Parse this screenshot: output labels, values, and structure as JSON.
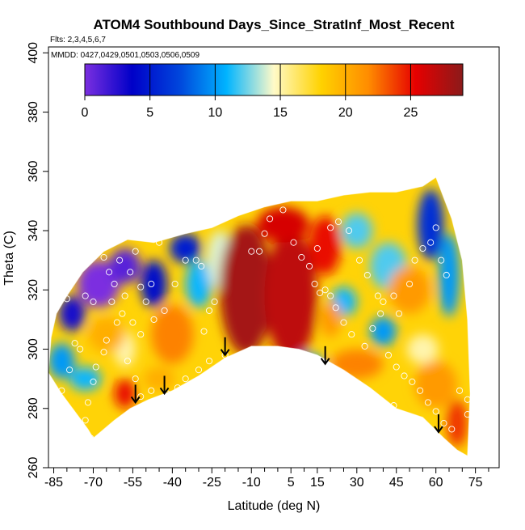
{
  "chart_data": {
    "type": "heatmap",
    "title": "ATOM4 Southbound Days_Since_StratInf_Most_Recent",
    "subtitle_flights": "Flts: 2,3,4,5,6,7",
    "subtitle_dates": "MMDD: 0427,0429,0501,0503,0506,0509",
    "xlabel": "Latitude (deg N)",
    "ylabel": "Theta (C)",
    "xlim": [
      -87,
      84
    ],
    "ylim": [
      260,
      402
    ],
    "x_major_ticks": [
      -85,
      -70,
      -55,
      -40,
      -25,
      -10,
      5,
      15,
      30,
      45,
      60,
      75
    ],
    "x_minor_ticks": [
      -80,
      -75,
      -65,
      -60,
      -50,
      -45,
      -35,
      -30,
      -20,
      -15,
      -5,
      0,
      10,
      20,
      25,
      35,
      40,
      50,
      55,
      65,
      70,
      80
    ],
    "y_ticks": [
      260,
      280,
      300,
      320,
      340,
      360,
      380,
      400
    ],
    "colorbar": {
      "min": 0,
      "max": 29,
      "ticks": [
        0,
        5,
        10,
        15,
        20,
        25
      ],
      "colors": [
        "#7b2fe0",
        "#0000c8",
        "#0046dc",
        "#00b4ff",
        "#fffac8",
        "#ffd200",
        "#ff8c00",
        "#e60000",
        "#8b1a1a"
      ]
    },
    "arrows": [
      {
        "lat": -54,
        "theta": 282
      },
      {
        "lat": -43,
        "theta": 285
      },
      {
        "lat": -20,
        "theta": 298
      },
      {
        "lat": 18,
        "theta": 295
      },
      {
        "lat": 61,
        "theta": 272
      }
    ],
    "field_region": {
      "bottom": [
        [
          -87,
          292
        ],
        [
          -82,
          285
        ],
        [
          -77,
          279
        ],
        [
          -72,
          273
        ],
        [
          -70,
          270
        ],
        [
          -62,
          276
        ],
        [
          -56,
          280
        ],
        [
          -49,
          283
        ],
        [
          -40,
          286
        ],
        [
          -30,
          291
        ],
        [
          -20,
          297
        ],
        [
          -10,
          301
        ],
        [
          0,
          301
        ],
        [
          8,
          300
        ],
        [
          15,
          298
        ],
        [
          25,
          293
        ],
        [
          35,
          287
        ],
        [
          45,
          280
        ],
        [
          55,
          277
        ],
        [
          63,
          270
        ],
        [
          68,
          266
        ],
        [
          72,
          264
        ]
      ],
      "top": [
        [
          -87,
          292
        ],
        [
          -86,
          304
        ],
        [
          -84,
          312
        ],
        [
          -80,
          318
        ],
        [
          -74,
          326
        ],
        [
          -66,
          333
        ],
        [
          -57,
          337
        ],
        [
          -47,
          336
        ],
        [
          -35,
          339
        ],
        [
          -25,
          341
        ],
        [
          -15,
          345
        ],
        [
          -5,
          348
        ],
        [
          5,
          350
        ],
        [
          15,
          350
        ],
        [
          25,
          352
        ],
        [
          35,
          353
        ],
        [
          45,
          353
        ],
        [
          55,
          355
        ],
        [
          60,
          358
        ],
        [
          66,
          344
        ],
        [
          70,
          330
        ],
        [
          72,
          310
        ],
        [
          73,
          285
        ],
        [
          72,
          264
        ]
      ]
    },
    "patches": [
      {
        "lat": -68,
        "theta": 322,
        "rlat": 8,
        "rtheta": 8,
        "value": 0
      },
      {
        "lat": -58,
        "theta": 328,
        "rlat": 6,
        "rtheta": 6,
        "value": 1
      },
      {
        "lat": -78,
        "theta": 312,
        "rlat": 5,
        "rtheta": 6,
        "value": 3
      },
      {
        "lat": -47,
        "theta": 322,
        "rlat": 5,
        "rtheta": 8,
        "value": 4
      },
      {
        "lat": -35,
        "theta": 334,
        "rlat": 6,
        "rtheta": 5,
        "value": 5
      },
      {
        "lat": 58,
        "theta": 342,
        "rlat": 5,
        "rtheta": 12,
        "value": 6
      },
      {
        "lat": 65,
        "theta": 325,
        "rlat": 4,
        "rtheta": 14,
        "value": 10
      },
      {
        "lat": -30,
        "theta": 322,
        "rlat": 5,
        "rtheta": 8,
        "value": 11
      },
      {
        "lat": 10,
        "theta": 294,
        "rlat": 8,
        "rtheta": 5,
        "value": 10
      },
      {
        "lat": 40,
        "theta": 306,
        "rlat": 5,
        "rtheta": 5,
        "value": 10
      },
      {
        "lat": 25,
        "theta": 316,
        "rlat": 5,
        "rtheta": 5,
        "value": 11
      },
      {
        "lat": -82,
        "theta": 296,
        "rlat": 5,
        "rtheta": 6,
        "value": 10
      },
      {
        "lat": -73,
        "theta": 290,
        "rlat": 6,
        "rtheta": 4,
        "value": 11
      },
      {
        "lat": 42,
        "theta": 328,
        "rlat": 7,
        "rtheta": 8,
        "value": 12
      },
      {
        "lat": 30,
        "theta": 340,
        "rlat": 6,
        "rtheta": 6,
        "value": 12
      },
      {
        "lat": -22,
        "theta": 330,
        "rlat": 5,
        "rtheta": 10,
        "value": 14
      },
      {
        "lat": -58,
        "theta": 300,
        "rlat": 4,
        "rtheta": 6,
        "value": 15
      },
      {
        "lat": 55,
        "theta": 300,
        "rlat": 6,
        "rtheta": 5,
        "value": 15
      },
      {
        "lat": -40,
        "theta": 305,
        "rlat": 8,
        "rtheta": 10,
        "value": 22
      },
      {
        "lat": -65,
        "theta": 305,
        "rlat": 7,
        "rtheta": 6,
        "value": 20
      },
      {
        "lat": -45,
        "theta": 290,
        "rlat": 6,
        "rtheta": 4,
        "value": 20
      },
      {
        "lat": 60,
        "theta": 288,
        "rlat": 8,
        "rtheta": 8,
        "value": 21
      },
      {
        "lat": 50,
        "theta": 320,
        "rlat": 8,
        "rtheta": 8,
        "value": 21
      },
      {
        "lat": 30,
        "theta": 295,
        "rlat": 10,
        "rtheta": 5,
        "value": 22
      },
      {
        "lat": 20,
        "theta": 310,
        "rlat": 4,
        "rtheta": 6,
        "value": 21
      },
      {
        "lat": -58,
        "theta": 285,
        "rlat": 4,
        "rtheta": 5,
        "value": 25
      },
      {
        "lat": 68,
        "theta": 275,
        "rlat": 4,
        "rtheta": 8,
        "value": 24
      },
      {
        "lat": -12,
        "theta": 320,
        "rlat": 10,
        "rtheta": 22,
        "value": 28
      },
      {
        "lat": 5,
        "theta": 318,
        "rlat": 10,
        "rtheta": 22,
        "value": 27
      },
      {
        "lat": 2,
        "theta": 342,
        "rlat": 10,
        "rtheta": 6,
        "value": 26
      },
      {
        "lat": 18,
        "theta": 335,
        "rlat": 6,
        "rtheta": 10,
        "value": 25
      }
    ],
    "points": [
      [
        -80,
        317
      ],
      [
        -73,
        318
      ],
      [
        -66,
        331
      ],
      [
        -64,
        326
      ],
      [
        -60,
        330
      ],
      [
        -56,
        326
      ],
      [
        -54,
        333
      ],
      [
        -52,
        321
      ],
      [
        -48,
        322
      ],
      [
        -45,
        336
      ],
      [
        -62,
        322
      ],
      [
        -58,
        318
      ],
      [
        -70,
        316
      ],
      [
        -35,
        330
      ],
      [
        -31,
        330
      ],
      [
        -29,
        328
      ],
      [
        -26,
        313
      ],
      [
        -24,
        316
      ],
      [
        -28,
        306
      ],
      [
        -39,
        322
      ],
      [
        -43,
        313
      ],
      [
        -47,
        310
      ],
      [
        -50,
        316
      ],
      [
        -52,
        305
      ],
      [
        -55,
        309
      ],
      [
        -59,
        312
      ],
      [
        -61,
        309
      ],
      [
        -63,
        316
      ],
      [
        -65,
        303
      ],
      [
        -66,
        299
      ],
      [
        -69,
        294
      ],
      [
        -70,
        289
      ],
      [
        -72,
        282
      ],
      [
        -73,
        276
      ],
      [
        -71,
        270
      ],
      [
        -75,
        300
      ],
      [
        -77,
        302
      ],
      [
        -79,
        293
      ],
      [
        -82,
        286
      ],
      [
        -57,
        296
      ],
      [
        -54,
        290
      ],
      [
        -52,
        284
      ],
      [
        -48,
        286
      ],
      [
        -45,
        283
      ],
      [
        -42,
        285
      ],
      [
        -38,
        287
      ],
      [
        -35,
        290
      ],
      [
        -30,
        293
      ],
      [
        -26,
        296
      ],
      [
        -20,
        298
      ],
      [
        -10,
        333
      ],
      [
        -7,
        333
      ],
      [
        -5,
        339
      ],
      [
        -3,
        344
      ],
      [
        2,
        347
      ],
      [
        6,
        336
      ],
      [
        9,
        331
      ],
      [
        12,
        328
      ],
      [
        14,
        322
      ],
      [
        16,
        319
      ],
      [
        15,
        334
      ],
      [
        20,
        341
      ],
      [
        23,
        343
      ],
      [
        27,
        340
      ],
      [
        31,
        330
      ],
      [
        34,
        325
      ],
      [
        38,
        318
      ],
      [
        40,
        316
      ],
      [
        44,
        318
      ],
      [
        46,
        312
      ],
      [
        50,
        322
      ],
      [
        52,
        330
      ],
      [
        55,
        334
      ],
      [
        58,
        336
      ],
      [
        60,
        341
      ],
      [
        62,
        330
      ],
      [
        64,
        325
      ],
      [
        18,
        320
      ],
      [
        20,
        318
      ],
      [
        22,
        314
      ],
      [
        25,
        309
      ],
      [
        28,
        305
      ],
      [
        33,
        301
      ],
      [
        36,
        307
      ],
      [
        39,
        312
      ],
      [
        42,
        298
      ],
      [
        45,
        294
      ],
      [
        48,
        291
      ],
      [
        51,
        289
      ],
      [
        54,
        286
      ],
      [
        26,
        291
      ],
      [
        30,
        288
      ],
      [
        34,
        284
      ],
      [
        38,
        281
      ],
      [
        41,
        279
      ],
      [
        44,
        281
      ],
      [
        57,
        282
      ],
      [
        60,
        279
      ],
      [
        63,
        275
      ],
      [
        66,
        273
      ],
      [
        69,
        286
      ],
      [
        72,
        283
      ],
      [
        72,
        278
      ]
    ]
  }
}
